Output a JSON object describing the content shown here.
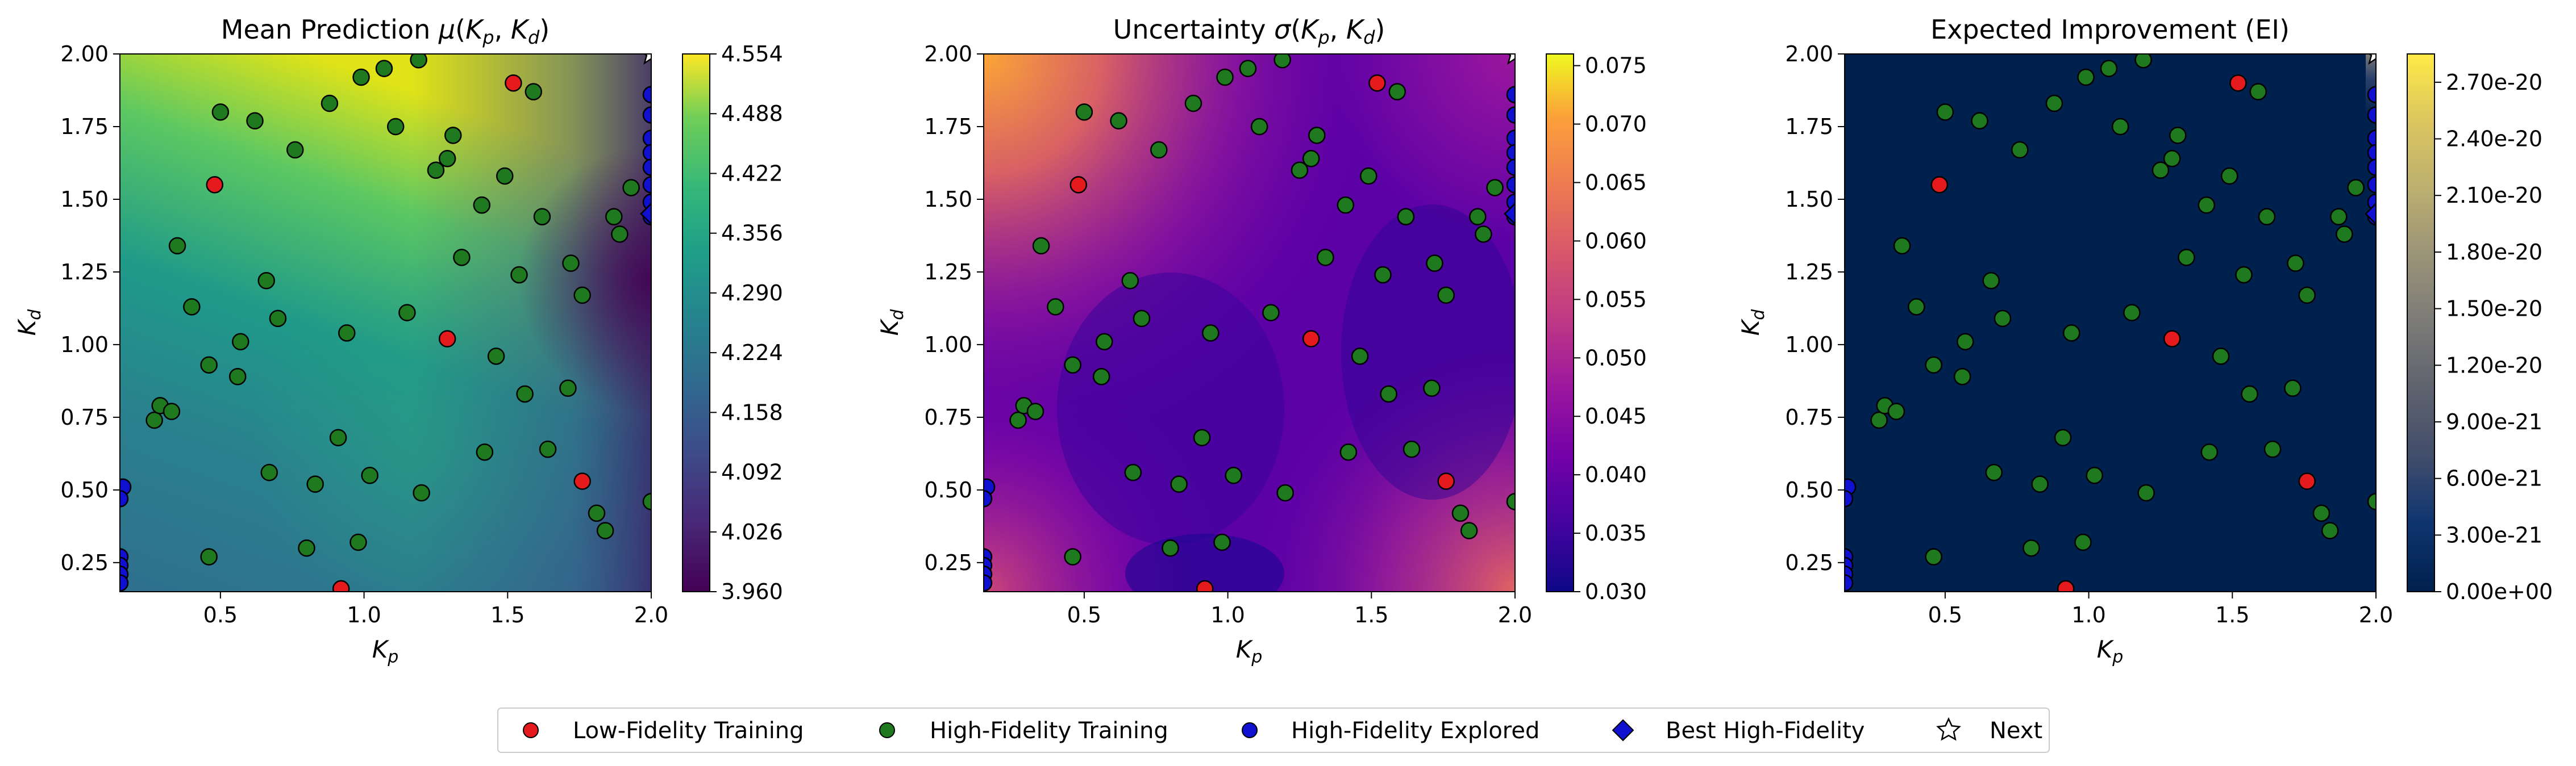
{
  "chart_data": [
    {
      "type": "heatmap",
      "title": "Mean Prediction μ(Kp,Kd)",
      "title_parts": {
        "prefix": "Mean Prediction ",
        "greek": "μ"
      },
      "xlabel": "Kp",
      "ylabel": "Kd",
      "xlim": [
        0.15,
        2.0
      ],
      "ylim": [
        0.15,
        2.0
      ],
      "xticks": [
        "0.5",
        "1.0",
        "1.5",
        "2.0"
      ],
      "yticks": [
        "0.25",
        "0.50",
        "0.75",
        "1.00",
        "1.25",
        "1.50",
        "1.75",
        "2.00"
      ],
      "colormap": "viridis",
      "colorbar": {
        "range": [
          3.96,
          4.554
        ],
        "ticks": [
          "3.960",
          "4.026",
          "4.092",
          "4.158",
          "4.224",
          "4.290",
          "4.356",
          "4.422",
          "4.488",
          "4.554"
        ]
      }
    },
    {
      "type": "heatmap",
      "title": "Uncertainty σ(Kp,Kd)",
      "title_parts": {
        "prefix": "Uncertainty ",
        "greek": "σ"
      },
      "xlabel": "Kp",
      "ylabel": "Kd",
      "xlim": [
        0.15,
        2.0
      ],
      "ylim": [
        0.15,
        2.0
      ],
      "xticks": [
        "0.5",
        "1.0",
        "1.5",
        "2.0"
      ],
      "yticks": [
        "0.25",
        "0.50",
        "0.75",
        "1.00",
        "1.25",
        "1.50",
        "1.75",
        "2.00"
      ],
      "colormap": "plasma",
      "colorbar": {
        "range": [
          0.03,
          0.076
        ],
        "ticks": [
          "0.030",
          "0.035",
          "0.040",
          "0.045",
          "0.050",
          "0.055",
          "0.060",
          "0.065",
          "0.070",
          "0.075"
        ]
      }
    },
    {
      "type": "heatmap",
      "title": "Expected Improvement (EI)",
      "xlabel": "Kp",
      "ylabel": "Kd",
      "xlim": [
        0.15,
        2.0
      ],
      "ylim": [
        0.15,
        2.0
      ],
      "xticks": [
        "0.5",
        "1.0",
        "1.5",
        "2.0"
      ],
      "yticks": [
        "0.25",
        "0.50",
        "0.75",
        "1.00",
        "1.25",
        "1.50",
        "1.75",
        "2.00"
      ],
      "colormap": "cividis",
      "colorbar": {
        "range": [
          0,
          2.85e-20
        ],
        "ticks": [
          "0.00e+00",
          "3.00e-21",
          "6.00e-21",
          "9.00e-21",
          "1.20e-20",
          "1.50e-20",
          "1.80e-20",
          "2.10e-20",
          "2.40e-20",
          "2.70e-20"
        ]
      }
    }
  ],
  "points": {
    "low_fidelity": [
      [
        0.48,
        1.55
      ],
      [
        1.52,
        1.9
      ],
      [
        1.29,
        1.02
      ],
      [
        1.76,
        0.53
      ],
      [
        0.92,
        0.16
      ]
    ],
    "high_fidelity": [
      [
        0.5,
        1.8
      ],
      [
        0.62,
        1.77
      ],
      [
        0.76,
        1.67
      ],
      [
        0.88,
        1.83
      ],
      [
        0.99,
        1.92
      ],
      [
        1.07,
        1.95
      ],
      [
        1.19,
        1.98
      ],
      [
        1.11,
        1.75
      ],
      [
        1.31,
        1.72
      ],
      [
        1.29,
        1.64
      ],
      [
        1.25,
        1.6
      ],
      [
        1.49,
        1.58
      ],
      [
        1.59,
        1.87
      ],
      [
        1.41,
        1.48
      ],
      [
        1.34,
        1.3
      ],
      [
        1.62,
        1.44
      ],
      [
        1.54,
        1.24
      ],
      [
        1.72,
        1.28
      ],
      [
        1.76,
        1.17
      ],
      [
        1.15,
        1.11
      ],
      [
        0.94,
        1.04
      ],
      [
        0.7,
        1.09
      ],
      [
        0.66,
        1.22
      ],
      [
        0.57,
        1.01
      ],
      [
        0.46,
        0.93
      ],
      [
        0.56,
        0.89
      ],
      [
        0.4,
        1.13
      ],
      [
        0.35,
        1.34
      ],
      [
        0.27,
        0.74
      ],
      [
        0.29,
        0.79
      ],
      [
        0.33,
        0.77
      ],
      [
        0.67,
        0.56
      ],
      [
        0.91,
        0.68
      ],
      [
        0.83,
        0.52
      ],
      [
        1.02,
        0.55
      ],
      [
        1.2,
        0.49
      ],
      [
        1.42,
        0.63
      ],
      [
        1.56,
        0.83
      ],
      [
        1.46,
        0.96
      ],
      [
        1.64,
        0.64
      ],
      [
        1.71,
        0.85
      ],
      [
        0.8,
        0.3
      ],
      [
        0.98,
        0.32
      ],
      [
        0.46,
        0.27
      ],
      [
        1.81,
        0.42
      ],
      [
        1.84,
        0.36
      ],
      [
        1.87,
        1.44
      ],
      [
        1.89,
        1.38
      ],
      [
        1.93,
        1.54
      ],
      [
        2.0,
        0.46
      ]
    ],
    "explored": [
      [
        0.16,
        0.51
      ],
      [
        0.15,
        0.47
      ],
      [
        0.15,
        0.27
      ],
      [
        0.15,
        0.24
      ],
      [
        0.15,
        0.21
      ],
      [
        0.15,
        0.18
      ],
      [
        2.0,
        1.86
      ],
      [
        2.0,
        1.79
      ],
      [
        2.0,
        1.71
      ],
      [
        2.0,
        1.66
      ],
      [
        2.0,
        1.61
      ],
      [
        2.0,
        1.55
      ],
      [
        2.0,
        1.49
      ],
      [
        2.0,
        1.44
      ]
    ],
    "best": [
      [
        2.0,
        1.45
      ]
    ],
    "next": [
      [
        2.0,
        2.0
      ]
    ]
  },
  "legend": {
    "placement": "bottom-center",
    "items": [
      {
        "label": "Low-Fidelity Training",
        "marker": "circle",
        "color": "#e41a1c"
      },
      {
        "label": "High-Fidelity Training",
        "marker": "circle",
        "color": "#1f7a1f"
      },
      {
        "label": "High-Fidelity Explored",
        "marker": "circle",
        "color": "#1010d0"
      },
      {
        "label": "Best High-Fidelity",
        "marker": "diamond",
        "color": "#1010d0"
      },
      {
        "label": "Next",
        "marker": "star",
        "color": "#ffffff"
      }
    ]
  }
}
